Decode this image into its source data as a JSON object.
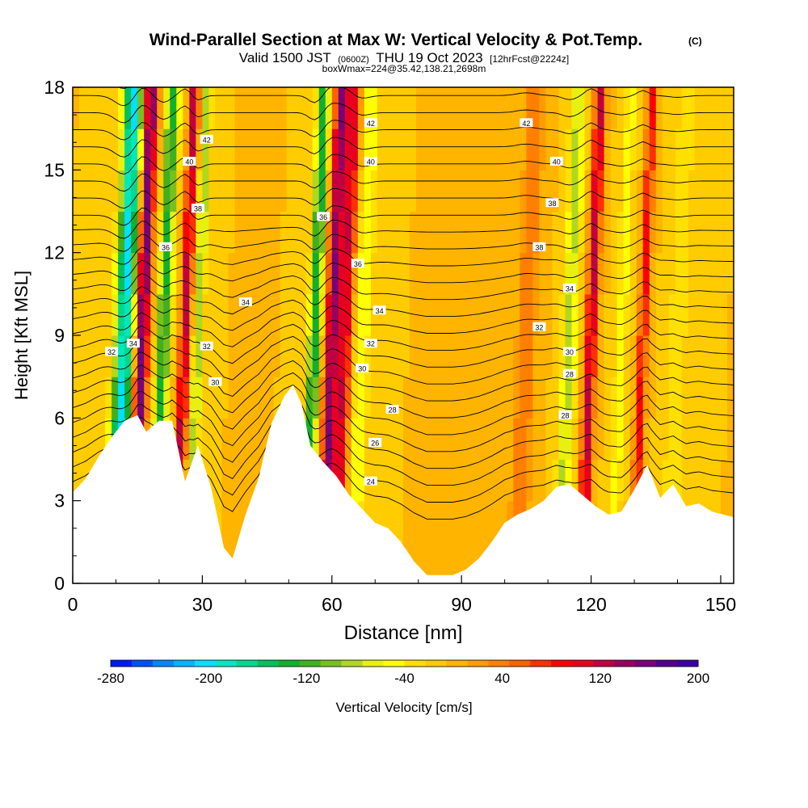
{
  "chart_data": {
    "type": "heatmap",
    "title": "Wind-Parallel Section at Max W: Vertical Velocity & Pot.Temp.",
    "title_mark": "(C)",
    "subtitle_main": "Valid 1500 JST",
    "subtitle_zulu": "(0600Z)",
    "subtitle_date": "THU 19 Oct 2023",
    "subtitle_fcst": "[12hrFcst@2224z]",
    "subtitle2": "boxWmax=224@35.42,138.21,2698m",
    "xlabel": "Distance [nm]",
    "ylabel": "Height [Kft MSL]",
    "xlim": [
      0,
      153
    ],
    "ylim": [
      0,
      18
    ],
    "x_ticks": [
      "0",
      "30",
      "60",
      "90",
      "120",
      "150"
    ],
    "x_tick_values": [
      0,
      30,
      60,
      90,
      120,
      150
    ],
    "y_ticks": [
      "0",
      "3",
      "6",
      "9",
      "12",
      "15",
      "18"
    ],
    "y_tick_values": [
      0,
      3,
      6,
      9,
      12,
      15,
      18
    ],
    "terrain": {
      "x": [
        0,
        3,
        6,
        9,
        12,
        15,
        17,
        20,
        23,
        26,
        29,
        32,
        35,
        37,
        40,
        43,
        46,
        49,
        51,
        53,
        55,
        58,
        61,
        64,
        67,
        70,
        73,
        76,
        79,
        82,
        85,
        88,
        91,
        94,
        97,
        100,
        103,
        106,
        109,
        112,
        115,
        118,
        121,
        124,
        127,
        130,
        133,
        136,
        139,
        142,
        145,
        148,
        153
      ],
      "height_kft": [
        3.3,
        3.8,
        4.6,
        5.3,
        5.9,
        6.1,
        5.5,
        5.9,
        5.9,
        3.7,
        5.0,
        3.5,
        1.3,
        0.9,
        2.5,
        3.8,
        5.8,
        6.8,
        7.2,
        6.5,
        5.0,
        4.4,
        3.9,
        3.2,
        2.7,
        2.2,
        2.0,
        1.5,
        0.8,
        0.3,
        0.3,
        0.3,
        0.5,
        0.9,
        1.5,
        2.2,
        2.5,
        2.7,
        3.0,
        3.5,
        3.6,
        3.2,
        2.8,
        2.5,
        2.6,
        3.4,
        4.3,
        3.1,
        3.6,
        2.8,
        2.9,
        2.6,
        2.4
      ]
    },
    "w_features": [
      {
        "x": 16,
        "w": 200,
        "width": 1.6
      },
      {
        "x": 12,
        "w": -230,
        "width": 2.2
      },
      {
        "x": 21,
        "w": -150,
        "width": 1.5
      },
      {
        "x": 26,
        "w": 150,
        "width": 1.2
      },
      {
        "x": 29,
        "w": -100,
        "width": 1.2
      },
      {
        "x": 56,
        "w": -160,
        "width": 1.4
      },
      {
        "x": 60,
        "w": 180,
        "width": 1.5
      },
      {
        "x": 63,
        "w": 140,
        "width": 1.6
      },
      {
        "x": 67,
        "w": -60,
        "width": 1.8
      },
      {
        "x": 105,
        "w": 60,
        "width": 2.2
      },
      {
        "x": 115,
        "w": -90,
        "width": 1.6
      },
      {
        "x": 120,
        "w": 150,
        "width": 1.3
      },
      {
        "x": 127,
        "w": -50,
        "width": 1.5
      },
      {
        "x": 132,
        "w": 110,
        "width": 1.2
      },
      {
        "x": 140,
        "w": -40,
        "width": 2.0
      }
    ],
    "theta_contours": {
      "levels_K": [
        18,
        19,
        20,
        21,
        22,
        23,
        24,
        25,
        26,
        27,
        28,
        29,
        30,
        31,
        32,
        33,
        34,
        35,
        36,
        37,
        38,
        39,
        40,
        41,
        42,
        43,
        44
      ],
      "labels": [
        {
          "text": "32",
          "x": 9,
          "h": 8.4
        },
        {
          "text": "34",
          "x": 14,
          "h": 8.7
        },
        {
          "text": "36",
          "x": 21.5,
          "h": 12.2
        },
        {
          "text": "38",
          "x": 29,
          "h": 13.6
        },
        {
          "text": "40",
          "x": 27,
          "h": 15.3
        },
        {
          "text": "42",
          "x": 31,
          "h": 16.1
        },
        {
          "text": "32",
          "x": 31,
          "h": 8.6
        },
        {
          "text": "30",
          "x": 33,
          "h": 7.3
        },
        {
          "text": "34",
          "x": 40,
          "h": 10.2
        },
        {
          "text": "36",
          "x": 58,
          "h": 13.3
        },
        {
          "text": "36",
          "x": 66,
          "h": 11.6
        },
        {
          "text": "34",
          "x": 71,
          "h": 9.9
        },
        {
          "text": "32",
          "x": 69,
          "h": 8.7
        },
        {
          "text": "30",
          "x": 67,
          "h": 7.8
        },
        {
          "text": "28",
          "x": 74,
          "h": 6.3
        },
        {
          "text": "26",
          "x": 70,
          "h": 5.1
        },
        {
          "text": "24",
          "x": 69,
          "h": 3.7
        },
        {
          "text": "40",
          "x": 69,
          "h": 15.3
        },
        {
          "text": "42",
          "x": 69,
          "h": 16.7
        },
        {
          "text": "42",
          "x": 105,
          "h": 16.7
        },
        {
          "text": "40",
          "x": 112,
          "h": 15.3
        },
        {
          "text": "38",
          "x": 111,
          "h": 13.8
        },
        {
          "text": "38",
          "x": 108,
          "h": 12.2
        },
        {
          "text": "34",
          "x": 115,
          "h": 10.7
        },
        {
          "text": "32",
          "x": 108,
          "h": 9.3
        },
        {
          "text": "30",
          "x": 115,
          "h": 8.4
        },
        {
          "text": "28",
          "x": 115,
          "h": 7.6
        },
        {
          "text": "28",
          "x": 114,
          "h": 6.1
        }
      ]
    },
    "colorbar": {
      "label": "Vertical Velocity [cm/s]",
      "tick_labels": [
        "-280",
        "-200",
        "-120",
        "-40",
        "40",
        "120",
        "200"
      ],
      "tick_values": [
        -280,
        -200,
        -120,
        -40,
        40,
        120,
        200
      ],
      "min": -280,
      "max": 200,
      "step": 20,
      "colors": [
        "#0018ff",
        "#0050ff",
        "#0088ff",
        "#00b4ff",
        "#00e0ff",
        "#00e8c0",
        "#00d890",
        "#00c060",
        "#10b030",
        "#40b020",
        "#78c020",
        "#b0d820",
        "#e8f010",
        "#ffff00",
        "#ffe000",
        "#ffcc00",
        "#ffb400",
        "#ff9c00",
        "#ff8000",
        "#ff6000",
        "#ff3000",
        "#ff0000",
        "#e80020",
        "#c00040",
        "#980060",
        "#780078",
        "#500090",
        "#3c00a0"
      ]
    }
  }
}
